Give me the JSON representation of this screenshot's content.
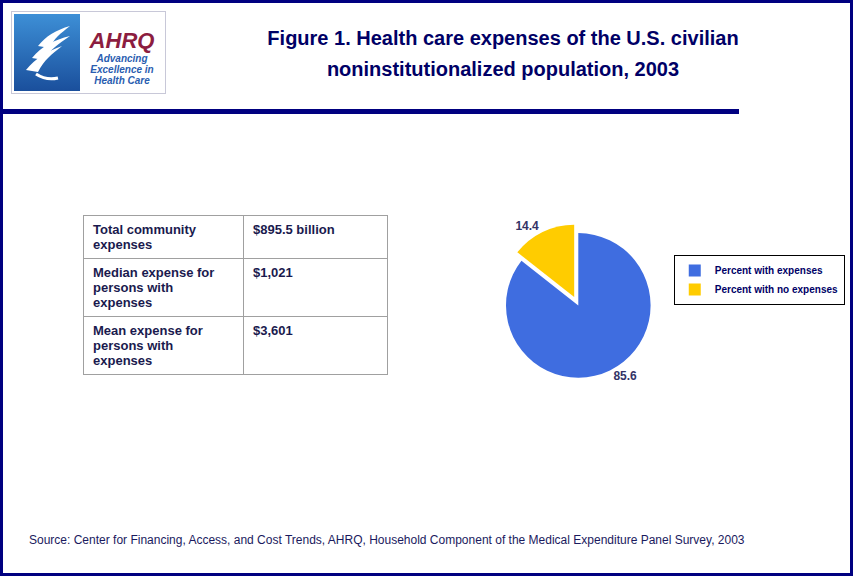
{
  "header": {
    "title": [
      "Figure 1. Health care expenses of the U.S. civilian",
      "noninstitutionalized population, 2003"
    ],
    "logo": {
      "name": "AHRQ",
      "tagline": [
        "Advancing",
        "Excellence in",
        "Health Care"
      ]
    }
  },
  "table": {
    "rows": [
      [
        "Total community expenses",
        "$895.5 billion"
      ],
      [
        "Median expense for persons with expenses",
        "$1,021"
      ],
      [
        "Mean expense for persons with expenses",
        "$3,601"
      ]
    ]
  },
  "chart_data": {
    "type": "pie",
    "categories": [
      "Percent with expenses",
      "Percent with no expenses"
    ],
    "values": [
      85.6,
      14.4
    ],
    "colors": [
      "#3f6de0",
      "#ffcc00"
    ],
    "data_labels": true,
    "legend": "right"
  },
  "source": "Source: Center for Financing, Access, and Cost Trends, AHRQ, Household Component of the Medical Expenditure Panel Survey, 2003"
}
